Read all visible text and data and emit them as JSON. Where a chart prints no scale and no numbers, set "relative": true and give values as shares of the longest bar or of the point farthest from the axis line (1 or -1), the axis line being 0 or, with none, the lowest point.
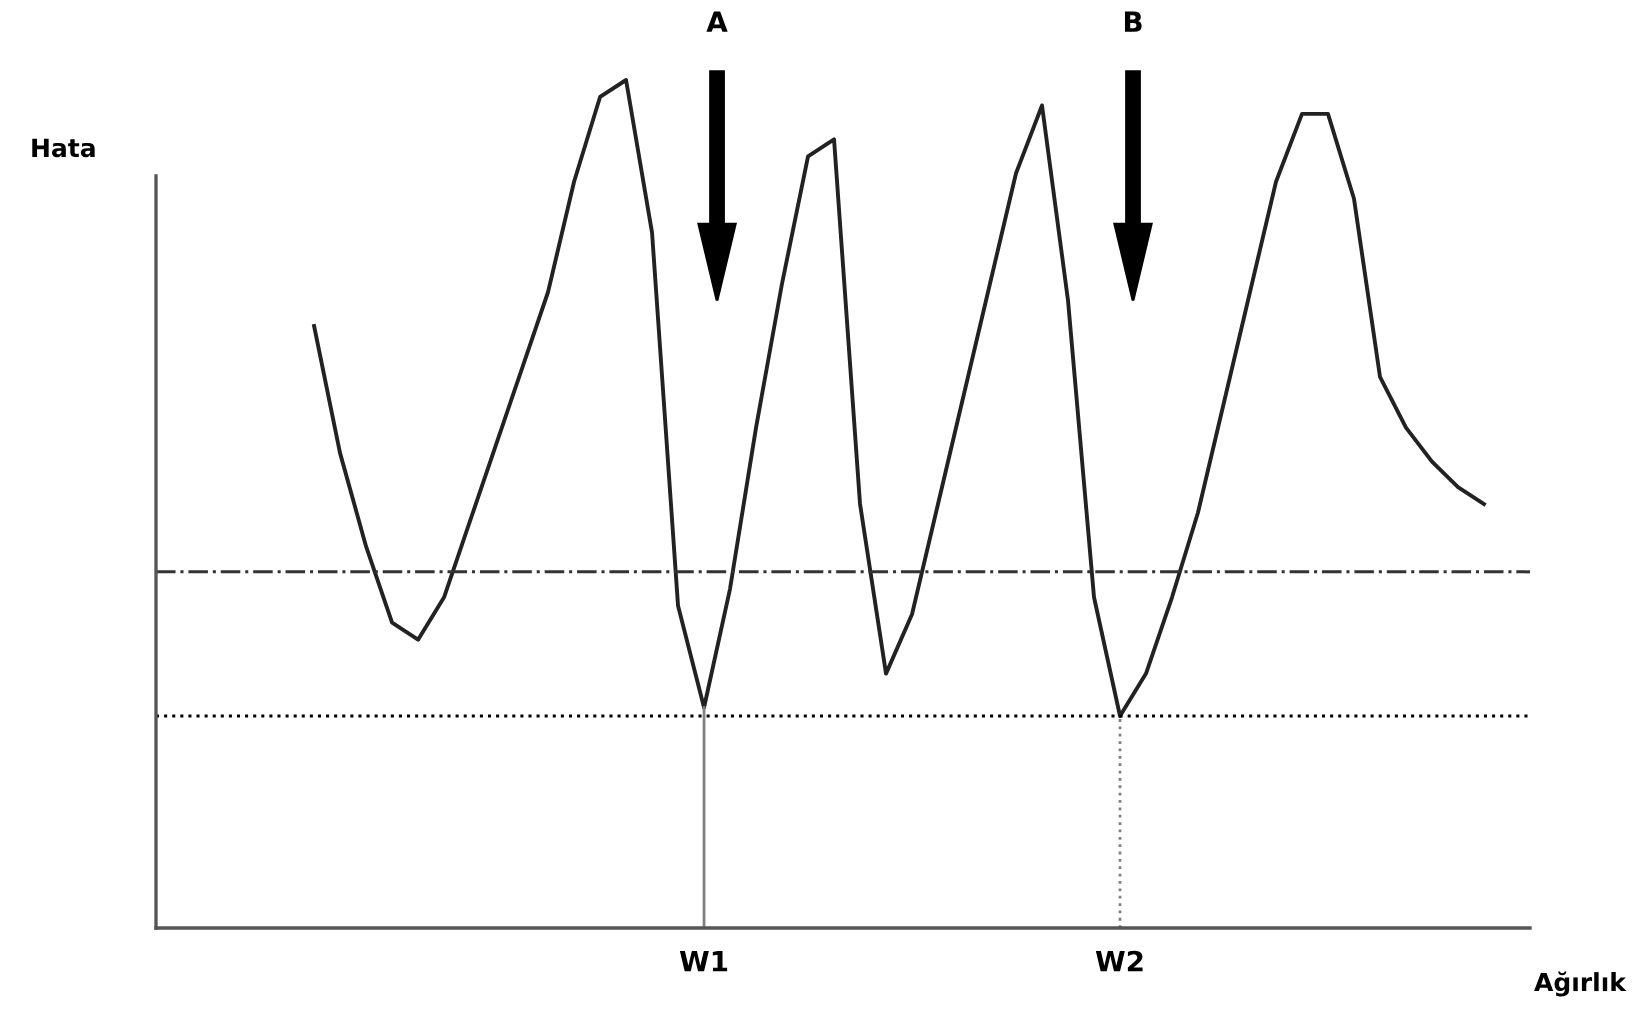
{
  "chart_data": {
    "type": "line",
    "relative": true,
    "ylabel": "Hata",
    "xlabel": "Ağırlık",
    "categories": [
      null,
      null,
      null,
      null,
      null,
      null,
      null,
      null,
      null,
      null,
      null,
      null,
      null,
      null,
      null,
      null,
      null,
      null,
      null,
      null,
      null,
      "W1",
      null,
      null,
      null,
      null,
      null,
      null,
      null,
      null,
      null,
      null,
      null,
      null,
      null,
      null,
      null,
      "W2",
      null,
      null,
      null,
      null,
      null,
      null,
      null,
      null,
      null,
      null,
      null,
      null,
      null,
      null,
      null
    ],
    "series": [
      {
        "color": "#222222",
        "values": [
          null,
          null,
          null,
          null,
          null,
          null,
          0.71,
          0.56,
          0.45,
          0.36,
          0.34,
          0.39,
          0.48,
          0.57,
          0.66,
          0.75,
          0.88,
          0.98,
          1.0,
          0.82,
          0.38,
          0.26,
          0.4,
          0.59,
          0.76,
          0.91,
          0.93,
          0.5,
          0.3,
          0.37,
          0.5,
          0.63,
          0.76,
          0.89,
          0.97,
          0.74,
          0.39,
          0.25,
          0.3,
          0.39,
          0.49,
          0.62,
          0.75,
          0.88,
          0.96,
          0.96,
          0.86,
          0.65,
          0.59,
          0.55,
          0.52,
          0.5,
          null
        ]
      }
    ],
    "ref_lines": [
      {
        "axis": "y",
        "value": 0.42,
        "color": "#333333",
        "line_style": "dashdot"
      },
      {
        "axis": "y",
        "value": 0.25,
        "color": "#000000",
        "line_style": "dotted"
      },
      {
        "axis": "x",
        "value": "W1",
        "color": "#808080",
        "line_style": "solid"
      },
      {
        "axis": "x",
        "value": "W2",
        "color": "#808080",
        "line_style": "dotted"
      }
    ],
    "annotations": [
      "A",
      "B"
    ],
    "grid": false,
    "legend": false
  }
}
